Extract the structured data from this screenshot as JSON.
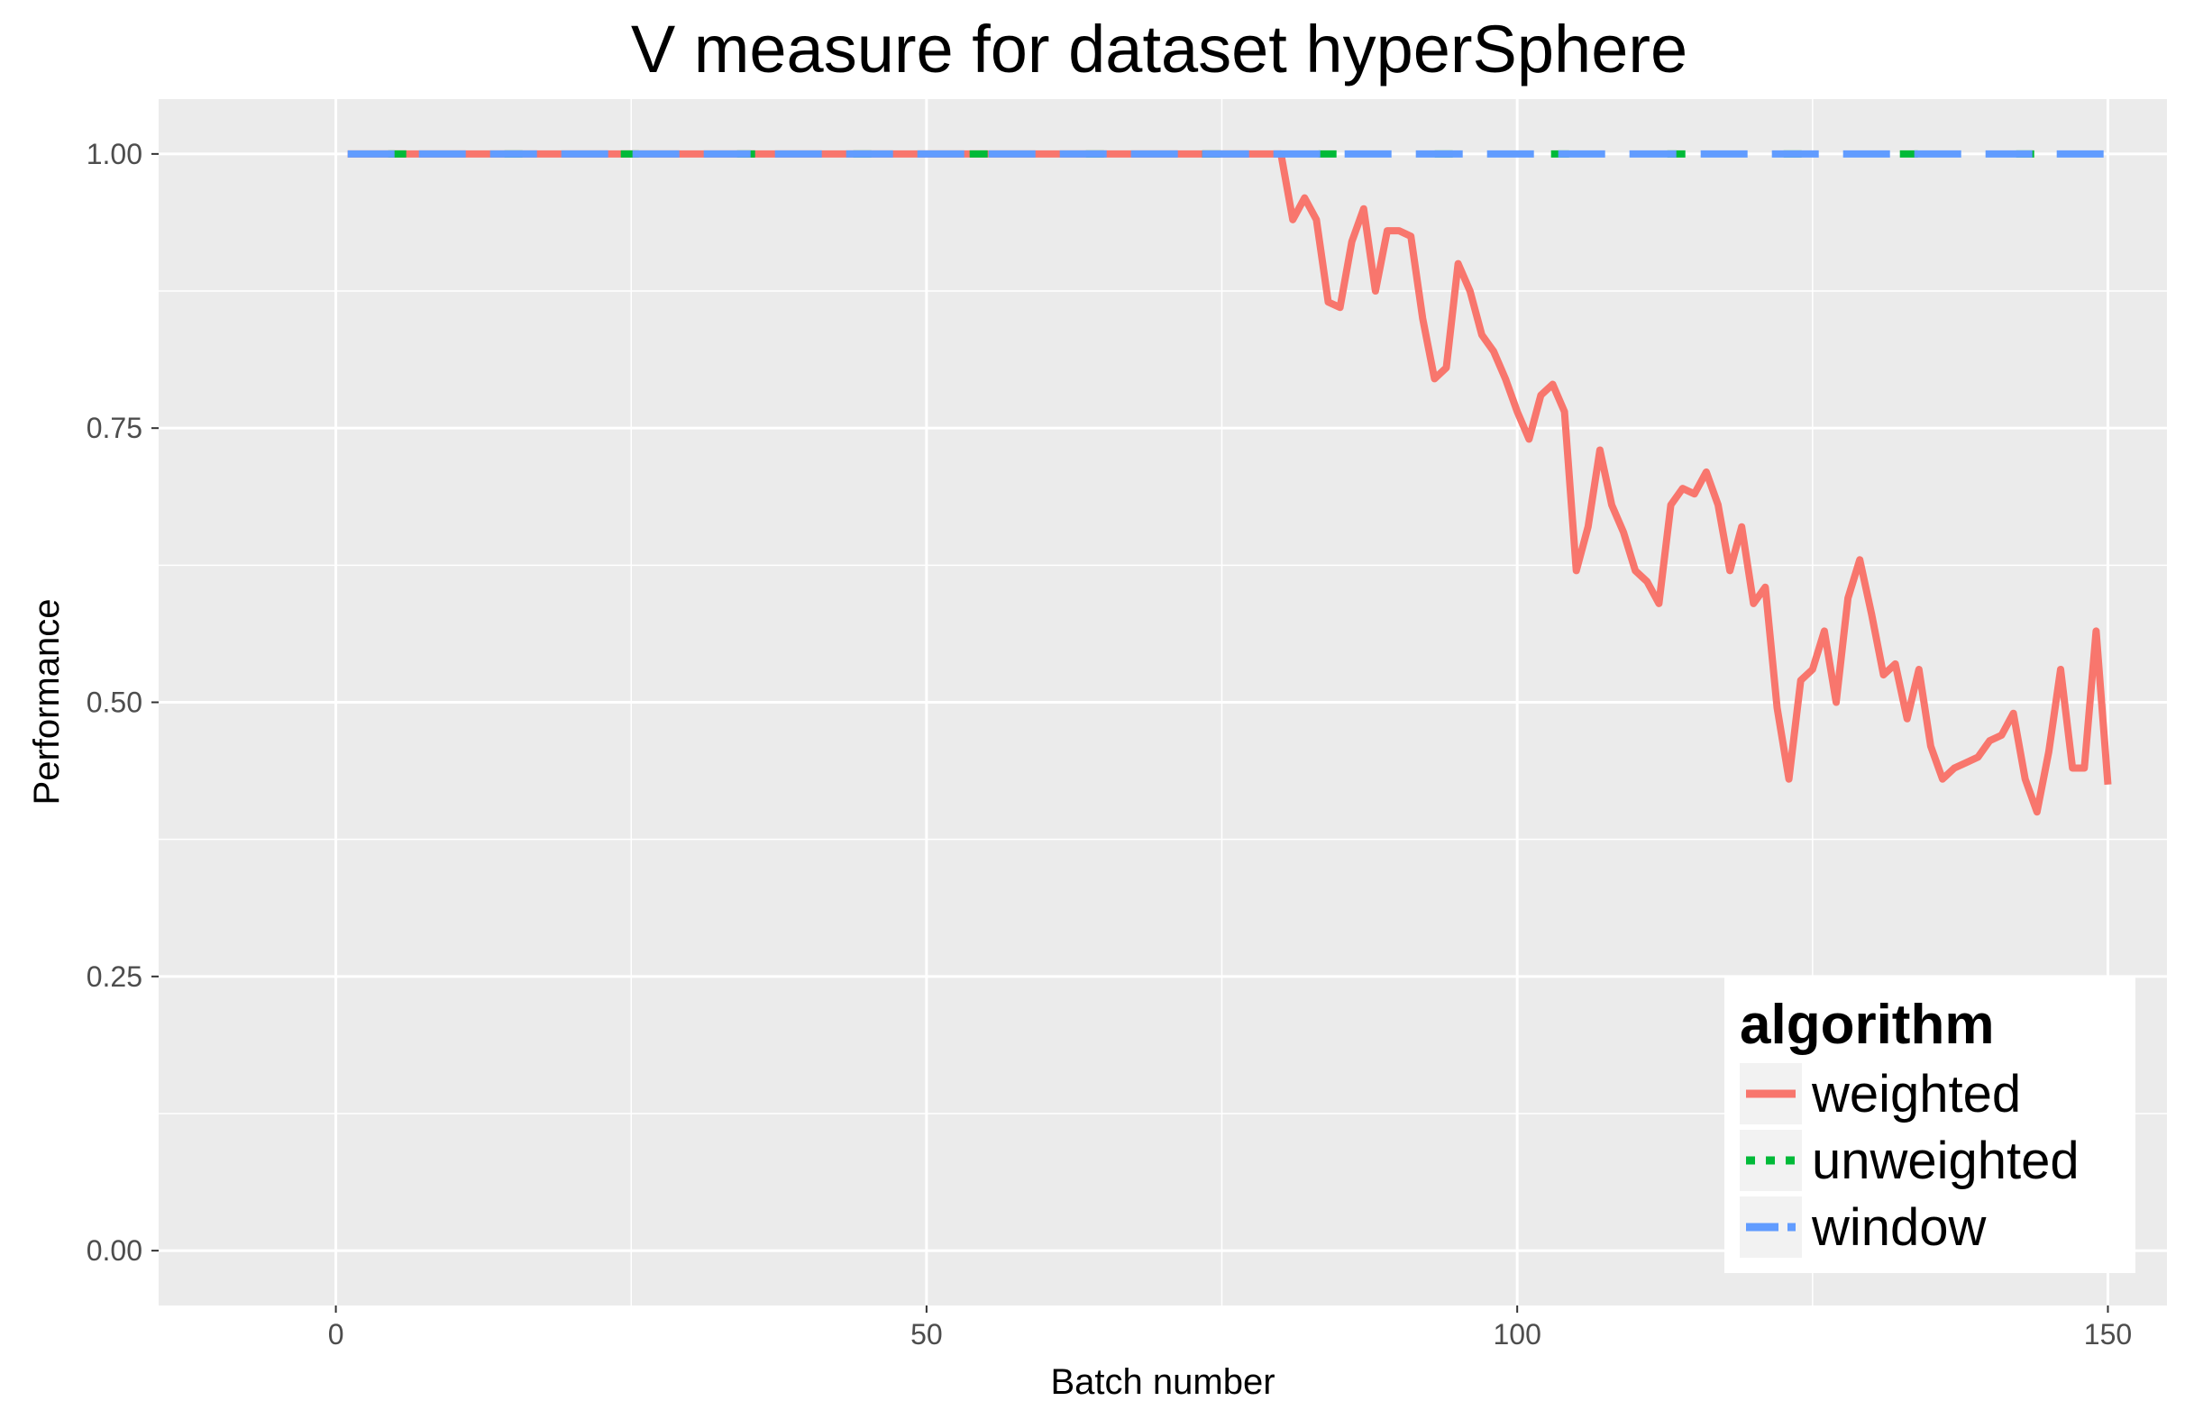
{
  "chart_data": {
    "type": "line",
    "title": "V measure for dataset hyperSphere",
    "xlabel": "Batch number",
    "ylabel": "Performance",
    "xlim": [
      -15,
      155
    ],
    "ylim": [
      -0.05,
      1.05
    ],
    "x_ticks": [
      0,
      50,
      100,
      150
    ],
    "x_tick_labels": [
      "0",
      "50",
      "100",
      "150"
    ],
    "y_ticks": [
      0,
      0.25,
      0.5,
      0.75,
      1.0
    ],
    "y_tick_labels": [
      "0.00",
      "0.25",
      "0.50",
      "0.75",
      "1.00"
    ],
    "grid": true,
    "legend": {
      "title": "algorithm",
      "position": "bottom-right"
    },
    "series": [
      {
        "name": "weighted",
        "color": "#F8766D",
        "linetype": "solid",
        "points": [
          [
            1,
            1.0
          ],
          [
            80,
            1.0
          ],
          [
            81,
            0.94
          ],
          [
            82,
            0.96
          ],
          [
            83,
            0.94
          ],
          [
            84,
            0.865
          ],
          [
            85,
            0.86
          ],
          [
            86,
            0.92
          ],
          [
            87,
            0.95
          ],
          [
            88,
            0.875
          ],
          [
            89,
            0.93
          ],
          [
            90,
            0.93
          ],
          [
            91,
            0.925
          ],
          [
            92,
            0.85
          ],
          [
            93,
            0.795
          ],
          [
            94,
            0.805
          ],
          [
            95,
            0.9
          ],
          [
            96,
            0.875
          ],
          [
            97,
            0.835
          ],
          [
            98,
            0.82
          ],
          [
            99,
            0.795
          ],
          [
            100,
            0.765
          ],
          [
            101,
            0.74
          ],
          [
            102,
            0.78
          ],
          [
            103,
            0.79
          ],
          [
            104,
            0.765
          ],
          [
            105,
            0.62
          ],
          [
            106,
            0.66
          ],
          [
            107,
            0.73
          ],
          [
            108,
            0.68
          ],
          [
            109,
            0.655
          ],
          [
            110,
            0.62
          ],
          [
            111,
            0.61
          ],
          [
            112,
            0.59
          ],
          [
            113,
            0.68
          ],
          [
            114,
            0.695
          ],
          [
            115,
            0.69
          ],
          [
            116,
            0.71
          ],
          [
            117,
            0.68
          ],
          [
            118,
            0.62
          ],
          [
            119,
            0.66
          ],
          [
            120,
            0.59
          ],
          [
            121,
            0.605
          ],
          [
            122,
            0.495
          ],
          [
            123,
            0.43
          ],
          [
            124,
            0.52
          ],
          [
            125,
            0.53
          ],
          [
            126,
            0.565
          ],
          [
            127,
            0.5
          ],
          [
            128,
            0.595
          ],
          [
            129,
            0.63
          ],
          [
            130,
            0.58
          ],
          [
            131,
            0.525
          ],
          [
            132,
            0.535
          ],
          [
            133,
            0.485
          ],
          [
            134,
            0.53
          ],
          [
            135,
            0.46
          ],
          [
            136,
            0.43
          ],
          [
            137,
            0.44
          ],
          [
            138,
            0.445
          ],
          [
            139,
            0.45
          ],
          [
            140,
            0.465
          ],
          [
            141,
            0.47
          ],
          [
            142,
            0.49
          ],
          [
            143,
            0.43
          ],
          [
            144,
            0.4
          ],
          [
            145,
            0.455
          ],
          [
            146,
            0.53
          ],
          [
            147,
            0.44
          ],
          [
            148,
            0.44
          ],
          [
            149,
            0.565
          ],
          [
            150,
            0.425
          ]
        ]
      },
      {
        "name": "unweighted",
        "color": "#00BA38",
        "linetype": "dotted",
        "points": [
          [
            1,
            1.0
          ],
          [
            150,
            1.0
          ]
        ]
      },
      {
        "name": "window",
        "color": "#619CFF",
        "linetype": "dashed",
        "points": [
          [
            1,
            1.0
          ],
          [
            150,
            1.0
          ]
        ]
      }
    ]
  }
}
